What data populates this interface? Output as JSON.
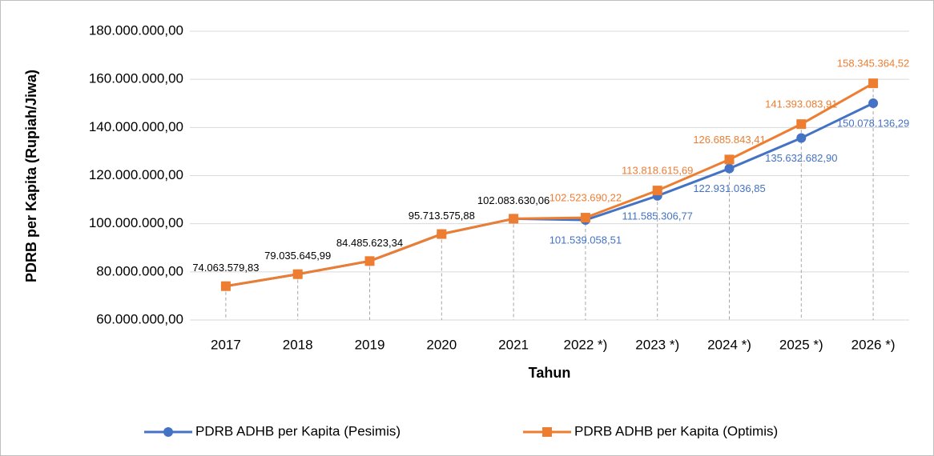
{
  "chart_data": {
    "type": "line",
    "y_label": "PDRB per Kapita (Rupiah/Jiwa)",
    "x_label": "Tahun",
    "categories": [
      "2017",
      "2018",
      "2019",
      "2020",
      "2021",
      "2022 *)",
      "2023 *)",
      "2024 *)",
      "2025 *)",
      "2026 *)"
    ],
    "series": [
      {
        "name": "PDRB ADHB per Kapita (Pesimis)",
        "color": "#4472c4",
        "marker": "circle",
        "values": [
          74063579.83,
          79035645.99,
          84485623.34,
          95713575.88,
          102083630.06,
          101539058.51,
          111585306.77,
          122931036.85,
          135632682.9,
          150078136.29
        ],
        "value_labels": [
          "74.063.579,83",
          "79.035.645,99",
          "84.485.623,34",
          "95.713.575,88",
          "102.083.630,06",
          "101.539.058,51",
          "111.585.306,77",
          "122.931.036,85",
          "135.632.682,90",
          "150.078.136,29"
        ]
      },
      {
        "name": "PDRB ADHB per Kapita (Optimis)",
        "color": "#ed7d31",
        "marker": "square",
        "values": [
          74063579.83,
          79035645.99,
          84485623.34,
          95713575.88,
          102083630.06,
          102523690.22,
          113818615.69,
          126685843.41,
          141393083.91,
          158345364.52
        ],
        "value_labels": [
          null,
          null,
          null,
          null,
          null,
          "102.523.690,22",
          "113.818.615,69",
          "126.685.843,41",
          "141.393.083,91",
          "158.345.364,52"
        ]
      }
    ],
    "ylim": [
      60000000,
      180000000
    ],
    "yticks": [
      {
        "value": 60000000,
        "label": "60.000.000,00"
      },
      {
        "value": 80000000,
        "label": "80.000.000,00"
      },
      {
        "value": 100000000,
        "label": "100.000.000,00"
      },
      {
        "value": 120000000,
        "label": "120.000.000,00"
      },
      {
        "value": 140000000,
        "label": "140.000.000,00"
      },
      {
        "value": 160000000,
        "label": "160.000.000,00"
      },
      {
        "value": 180000000,
        "label": "180.000.000,00"
      }
    ],
    "grid": true,
    "legend": "bottom"
  }
}
